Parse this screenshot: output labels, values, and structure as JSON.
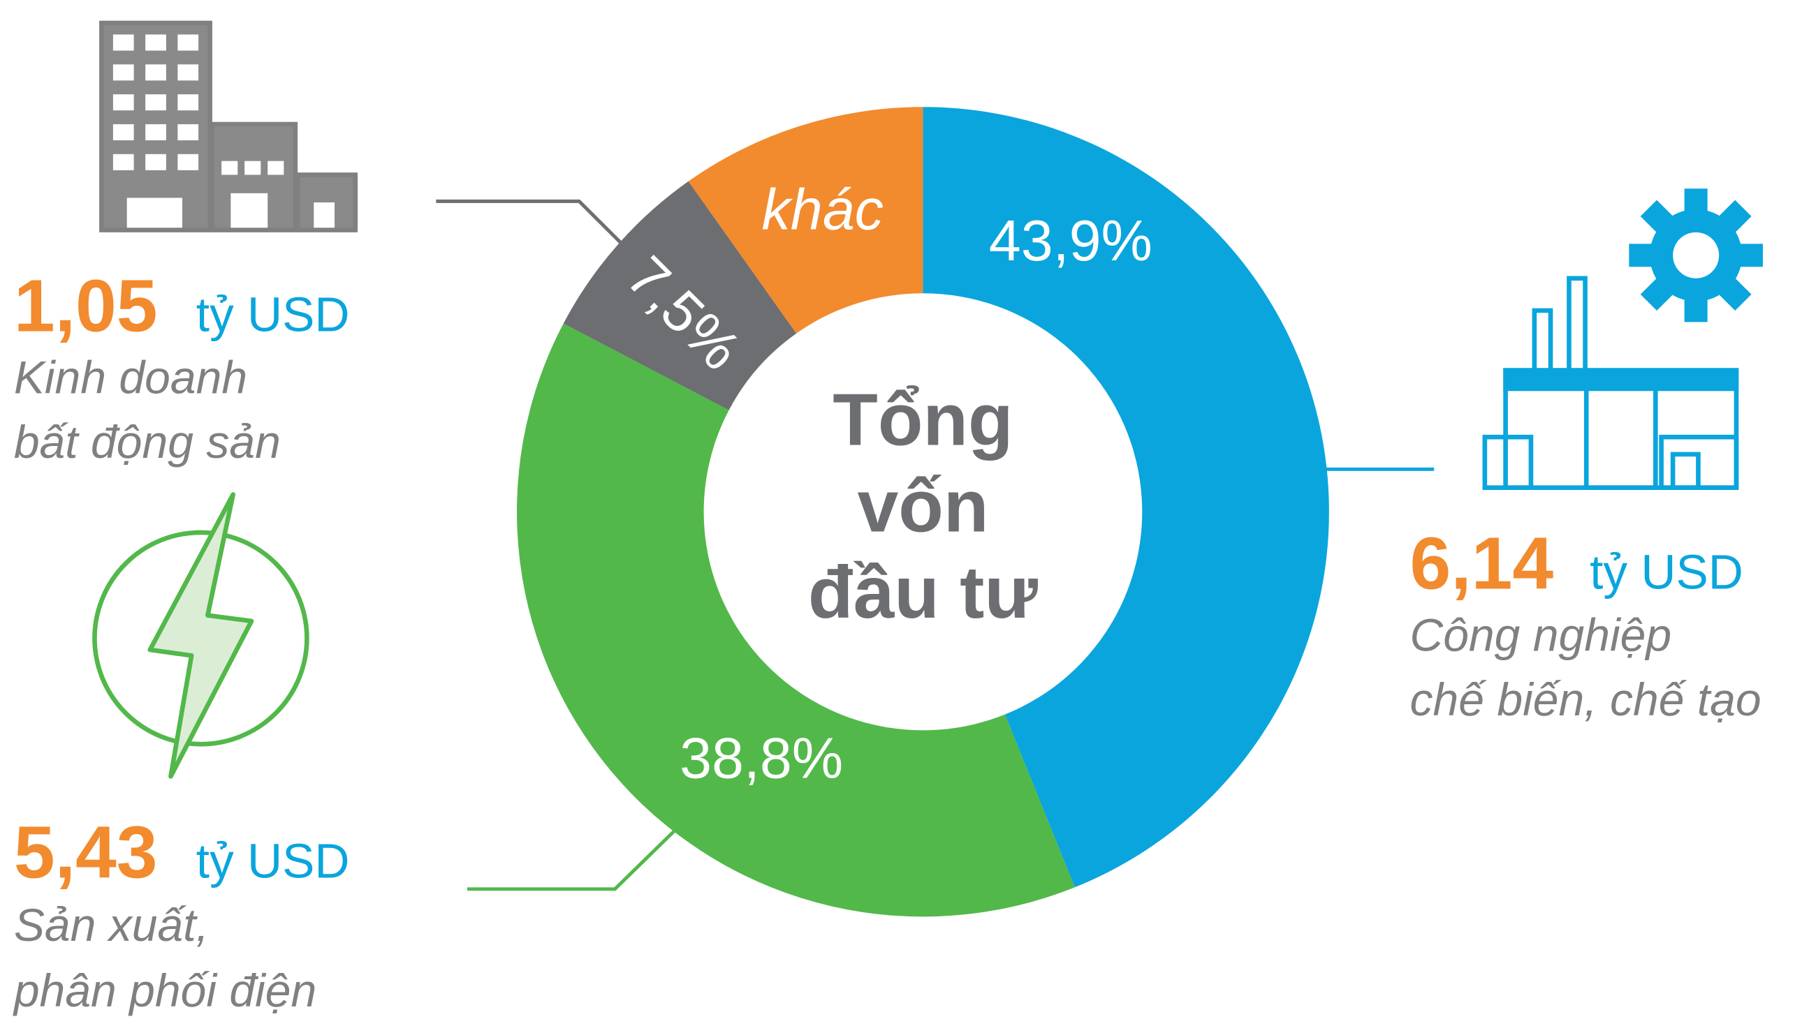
{
  "chart_data": {
    "type": "donut",
    "categories": [
      [
        "Công nghiệp",
        "chế biến, chế tạo"
      ],
      [
        "Sản xuất,",
        "phân phối điện"
      ],
      [
        "Kinh doanh",
        "bất động sản"
      ],
      [
        "khác"
      ]
    ],
    "values": [
      43.9,
      38.8,
      7.5,
      9.8
    ],
    "value_labels": [
      "43,9%",
      "38,8%",
      "7,5%",
      null
    ],
    "colors": [
      "#0aa5dd",
      "#52b84a",
      "#6d6e71",
      "#f28a2e"
    ],
    "center_text": [
      "Tổng",
      "vốn",
      "đầu tư"
    ],
    "amounts": [
      "6,14",
      "5,43",
      "1,05"
    ],
    "unit": "tỷ USD"
  }
}
